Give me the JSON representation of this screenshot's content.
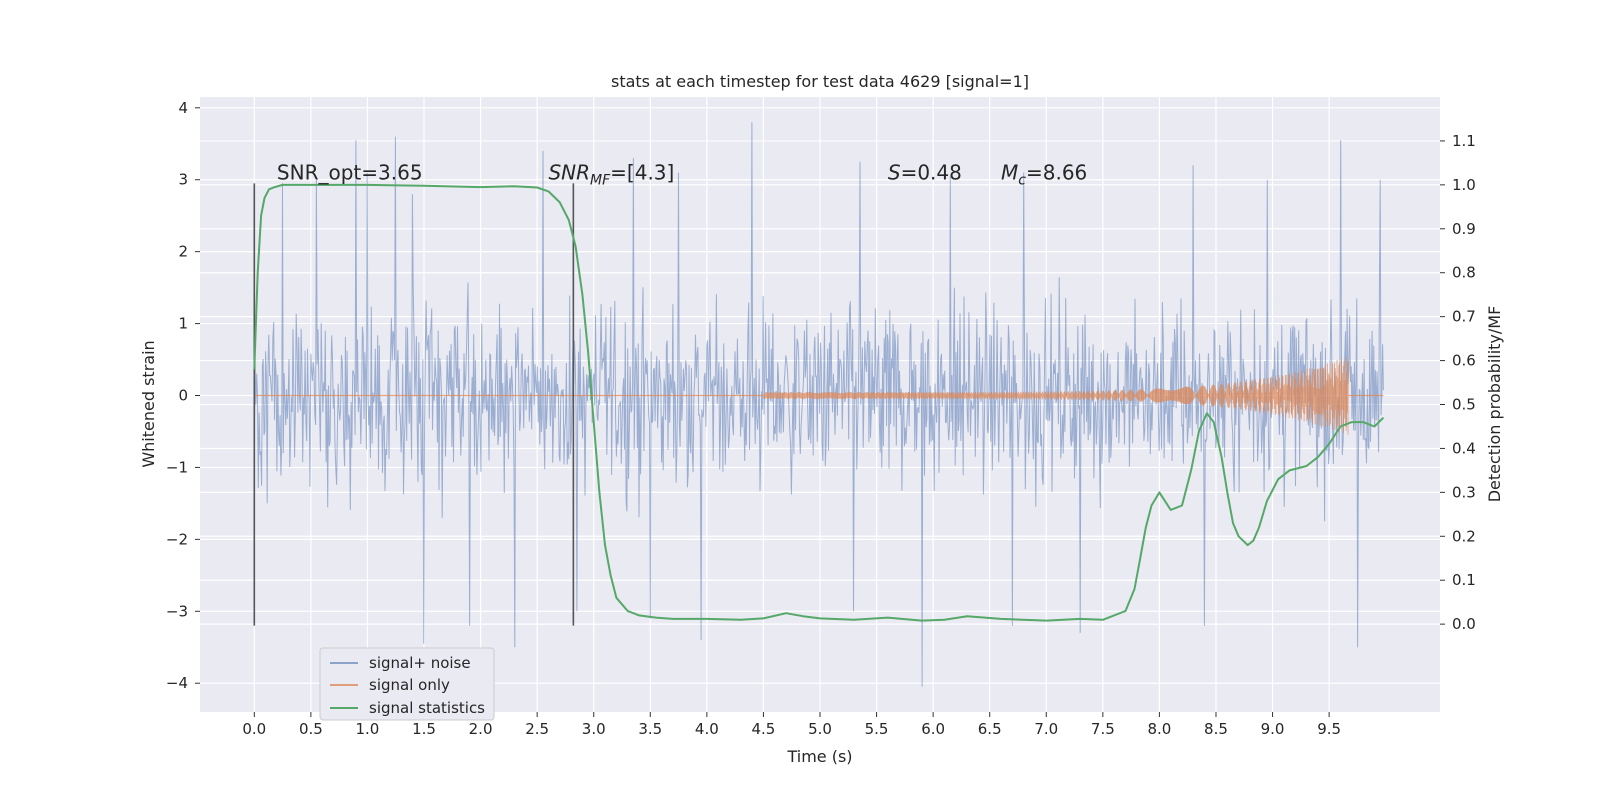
{
  "chart_data": {
    "type": "line",
    "title": "stats at each timestep for test data 4629 [signal=1]",
    "xlabel": "Time (s)",
    "ylabel": "Whitened strain",
    "ylabel_right": "Detection probability/MF",
    "xlim": [
      -0.48,
      10.48
    ],
    "ylim": [
      -4.4,
      4.15
    ],
    "ylim_right": [
      -0.2,
      1.2
    ],
    "x_ticks": [
      "0.0",
      "0.5",
      "1.0",
      "1.5",
      "2.0",
      "2.5",
      "3.0",
      "3.5",
      "4.0",
      "4.5",
      "5.0",
      "5.5",
      "6.0",
      "6.5",
      "7.0",
      "7.5",
      "8.0",
      "8.5",
      "9.0",
      "9.5"
    ],
    "y_ticks": [
      "−4",
      "−3",
      "−2",
      "−1",
      "0",
      "1",
      "2",
      "3",
      "4"
    ],
    "y_ticks_right": [
      "0.0",
      "0.1",
      "0.2",
      "0.3",
      "0.4",
      "0.5",
      "0.6",
      "0.7",
      "0.8",
      "0.9",
      "1.0",
      "1.1"
    ],
    "grid": true,
    "legend_position": "lower-left",
    "colors": {
      "background": "#eaeaf2",
      "grid": "#ffffff",
      "noise": "#4c72b0",
      "signal": "#dd8452",
      "statistic": "#55a868",
      "marker": "#555555"
    },
    "series": [
      {
        "name": "signal+ noise",
        "axis": "left",
        "x_range": [
          0.0,
          9.98
        ],
        "envelope_typical": 1.8,
        "peaks": [
          [
            0.25,
            2.95
          ],
          [
            0.55,
            3.0
          ],
          [
            0.9,
            3.55
          ],
          [
            1.0,
            3.1
          ],
          [
            1.25,
            3.6
          ],
          [
            1.4,
            2.8
          ],
          [
            2.55,
            3.4
          ],
          [
            3.35,
            3.3
          ],
          [
            3.75,
            3.1
          ],
          [
            4.4,
            3.8
          ],
          [
            5.35,
            3.25
          ],
          [
            6.15,
            3.05
          ],
          [
            6.8,
            3.1
          ],
          [
            7.3,
            3.0
          ],
          [
            8.3,
            3.2
          ],
          [
            8.95,
            3.0
          ],
          [
            9.6,
            3.55
          ],
          [
            9.95,
            3.0
          ]
        ],
        "troughs": [
          [
            1.5,
            -3.45
          ],
          [
            1.9,
            -3.2
          ],
          [
            2.3,
            -3.5
          ],
          [
            2.85,
            -3.0
          ],
          [
            3.5,
            -3.1
          ],
          [
            3.95,
            -3.4
          ],
          [
            5.3,
            -3.0
          ],
          [
            5.9,
            -4.05
          ],
          [
            6.7,
            -3.2
          ],
          [
            7.3,
            -3.3
          ],
          [
            8.4,
            -3.2
          ],
          [
            9.75,
            -3.5
          ]
        ]
      },
      {
        "name": "signal only",
        "axis": "left",
        "chirp": {
          "start": 4.5,
          "merger": 9.67,
          "amp_start": 0.05,
          "amp_peak": 0.55
        }
      },
      {
        "name": "signal statistics",
        "axis": "right",
        "x": [
          0.0,
          0.03,
          0.06,
          0.09,
          0.13,
          0.18,
          0.25,
          0.4,
          0.6,
          1.0,
          1.5,
          2.0,
          2.3,
          2.5,
          2.6,
          2.7,
          2.78,
          2.84,
          2.9,
          2.95,
          3.0,
          3.05,
          3.1,
          3.15,
          3.2,
          3.3,
          3.4,
          3.55,
          3.7,
          4.0,
          4.3,
          4.5,
          4.7,
          4.85,
          5.0,
          5.3,
          5.6,
          5.9,
          6.1,
          6.3,
          6.6,
          7.0,
          7.3,
          7.5,
          7.7,
          7.78,
          7.83,
          7.88,
          7.93,
          8.0,
          8.1,
          8.2,
          8.28,
          8.35,
          8.42,
          8.48,
          8.55,
          8.6,
          8.65,
          8.7,
          8.78,
          8.83,
          8.88,
          8.95,
          9.05,
          9.15,
          9.3,
          9.4,
          9.5,
          9.6,
          9.7,
          9.8,
          9.9,
          9.98
        ],
        "values": [
          0.58,
          0.8,
          0.93,
          0.97,
          0.99,
          0.995,
          1.0,
          1.0,
          1.0,
          1.0,
          0.998,
          0.995,
          0.997,
          0.994,
          0.985,
          0.96,
          0.92,
          0.86,
          0.75,
          0.62,
          0.46,
          0.3,
          0.18,
          0.11,
          0.06,
          0.03,
          0.02,
          0.015,
          0.012,
          0.012,
          0.01,
          0.013,
          0.025,
          0.018,
          0.013,
          0.01,
          0.015,
          0.008,
          0.01,
          0.018,
          0.012,
          0.008,
          0.012,
          0.01,
          0.03,
          0.08,
          0.15,
          0.22,
          0.27,
          0.3,
          0.26,
          0.27,
          0.35,
          0.44,
          0.48,
          0.46,
          0.38,
          0.3,
          0.23,
          0.2,
          0.18,
          0.19,
          0.22,
          0.28,
          0.33,
          0.35,
          0.36,
          0.38,
          0.41,
          0.45,
          0.46,
          0.46,
          0.45,
          0.47
        ]
      }
    ],
    "markers": {
      "x": [
        0.0,
        2.82
      ],
      "y_range": [
        -3.2,
        2.95
      ]
    },
    "annotations": [
      {
        "id": "snr-opt",
        "parts": [
          {
            "t": "SNR_opt=3.65"
          }
        ],
        "x": 0.2,
        "y": 3.0
      },
      {
        "id": "snr-mf",
        "parts": [
          {
            "t": "SNR",
            "i": true
          },
          {
            "t": "MF",
            "i": true,
            "sub": true
          },
          {
            "t": "=[4.3]"
          }
        ],
        "x": 2.6,
        "y": 3.0
      },
      {
        "id": "spin",
        "parts": [
          {
            "t": "S",
            "i": true
          },
          {
            "t": "=0.48"
          }
        ],
        "x": 5.6,
        "y": 3.0
      },
      {
        "id": "chirp-mass",
        "parts": [
          {
            "t": "M",
            "i": true
          },
          {
            "t": "c",
            "i": true,
            "sub": true
          },
          {
            "t": "=8.66"
          }
        ],
        "x": 6.6,
        "y": 3.0
      }
    ]
  }
}
